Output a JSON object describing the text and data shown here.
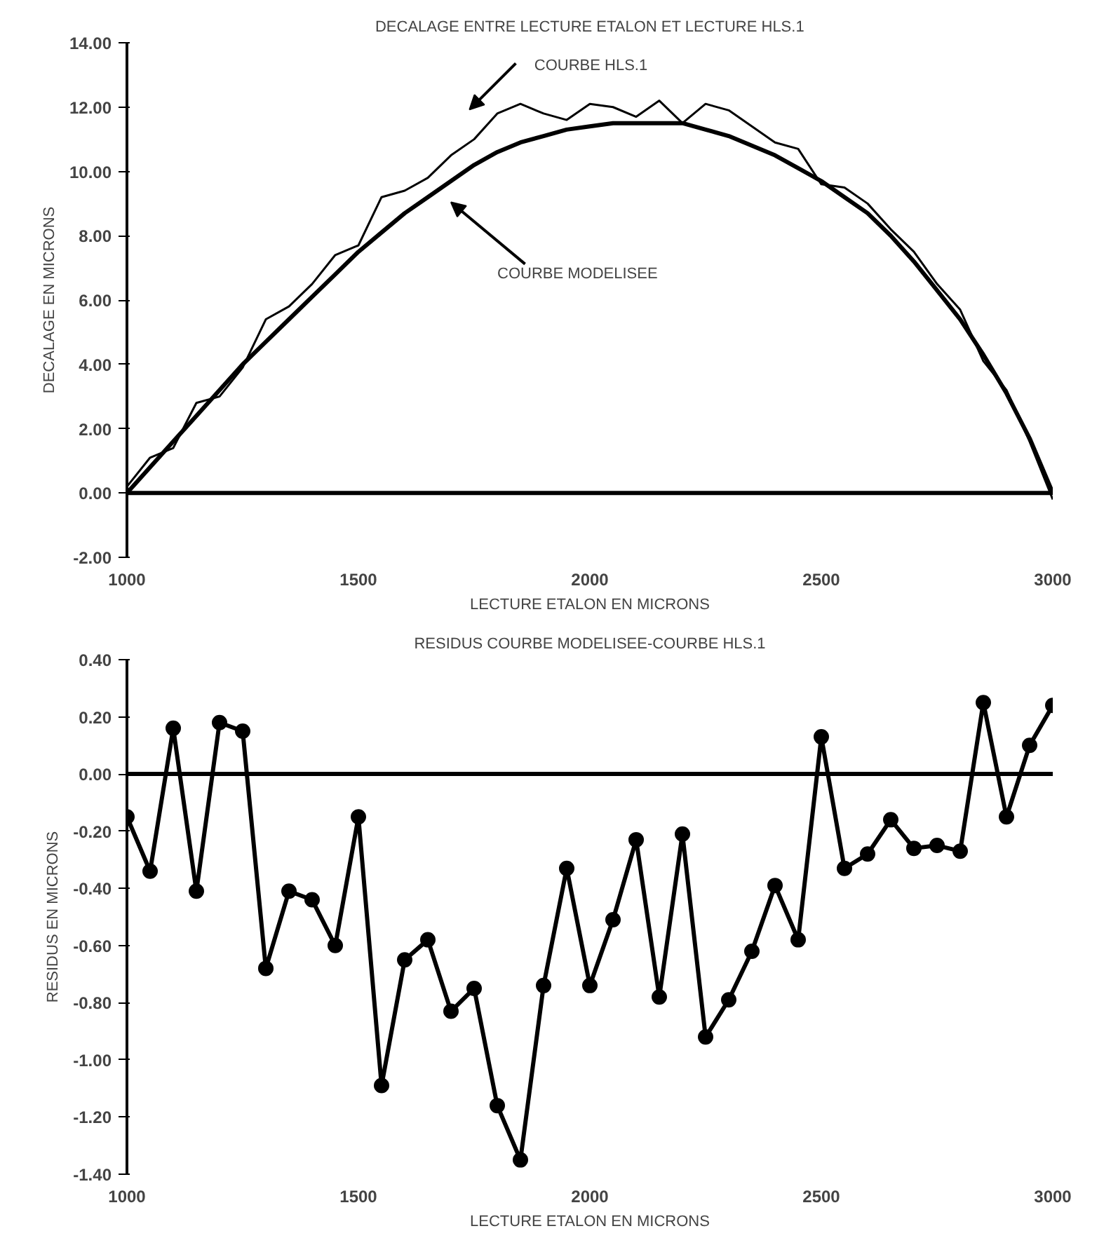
{
  "chart_data": [
    {
      "type": "line",
      "title": "DECALAGE ENTRE LECTURE ETALON ET LECTURE HLS.1",
      "xlabel": "LECTURE ETALON EN MICRONS",
      "ylabel": "DECALAGE EN MICRONS",
      "x": [
        1000,
        1050,
        1100,
        1150,
        1200,
        1250,
        1300,
        1350,
        1400,
        1450,
        1500,
        1550,
        1600,
        1650,
        1700,
        1750,
        1800,
        1850,
        1900,
        1950,
        2000,
        2050,
        2100,
        2150,
        2200,
        2250,
        2300,
        2350,
        2400,
        2450,
        2500,
        2550,
        2600,
        2650,
        2700,
        2750,
        2800,
        2850,
        2900,
        2950,
        3000
      ],
      "series": [
        {
          "color": "#000000",
          "values": [
            0.2,
            1.1,
            1.4,
            2.8,
            3.0,
            3.9,
            5.4,
            5.8,
            6.5,
            7.4,
            7.7,
            9.2,
            9.4,
            9.8,
            10.5,
            11.0,
            11.8,
            12.1,
            11.8,
            11.6,
            12.1,
            12.0,
            11.7,
            12.2,
            11.5,
            12.1,
            11.9,
            11.4,
            10.9,
            10.7,
            9.6,
            9.5,
            9.0,
            8.2,
            7.5,
            6.5,
            5.7,
            4.1,
            3.2,
            1.6,
            -0.2
          ]
        },
        {
          "color": "#000000",
          "values": [
            0,
            0.8,
            1.6,
            2.4,
            3.2,
            4.0,
            4.7,
            5.4,
            6.1,
            6.8,
            7.5,
            8.1,
            8.7,
            9.2,
            9.7,
            10.2,
            10.6,
            10.9,
            11.1,
            11.3,
            11.4,
            11.5,
            11.5,
            11.5,
            11.5,
            11.3,
            11.1,
            10.8,
            10.5,
            10.1,
            9.7,
            9.2,
            8.7,
            8.0,
            7.2,
            6.3,
            5.4,
            4.3,
            3.1,
            1.7,
            0
          ]
        }
      ],
      "annotations": [
        "COURBE HLS.1",
        "COURBE MODELISEE"
      ],
      "xlim": [
        1000,
        3000
      ],
      "xticks": [
        1000,
        1500,
        2000,
        2500,
        3000
      ],
      "ylim": [
        -2,
        14
      ],
      "yticks": [
        {
          "value": -2,
          "label": "-2.00"
        },
        {
          "value": 0,
          "label": "0.00"
        },
        {
          "value": 2,
          "label": "2.00"
        },
        {
          "value": 4,
          "label": "4.00"
        },
        {
          "value": 6,
          "label": "6.00"
        },
        {
          "value": 8,
          "label": "8.00"
        },
        {
          "value": 10,
          "label": "10.00"
        },
        {
          "value": 12,
          "label": "12.00"
        },
        {
          "value": 14,
          "label": "14.00"
        }
      ],
      "ref_lines": [
        {
          "axis": "y",
          "value": 0,
          "color": "#000000"
        }
      ],
      "grid": false,
      "line_style": "solid"
    },
    {
      "type": "line",
      "title": "RESIDUS COURBE MODELISEE-COURBE HLS.1",
      "xlabel": "LECTURE ETALON EN MICRONS",
      "ylabel": "RESIDUS EN MICRONS",
      "x": [
        1000,
        1050,
        1100,
        1150,
        1200,
        1250,
        1300,
        1350,
        1400,
        1450,
        1500,
        1550,
        1600,
        1650,
        1700,
        1750,
        1800,
        1850,
        1900,
        1950,
        2000,
        2050,
        2100,
        2150,
        2200,
        2250,
        2300,
        2350,
        2400,
        2450,
        2500,
        2550,
        2600,
        2650,
        2700,
        2750,
        2800,
        2850,
        2900,
        2950,
        3000
      ],
      "series": [
        {
          "color": "#000000",
          "values": [
            -0.15,
            -0.34,
            0.16,
            -0.41,
            0.18,
            0.15,
            -0.68,
            -0.41,
            -0.44,
            -0.6,
            -0.15,
            -1.09,
            -0.65,
            -0.58,
            -0.83,
            -0.75,
            -1.16,
            -1.35,
            -0.74,
            -0.33,
            -0.74,
            -0.51,
            -0.23,
            -0.78,
            -0.21,
            -0.92,
            -0.79,
            -0.62,
            -0.39,
            -0.58,
            0.13,
            -0.33,
            -0.28,
            -0.16,
            -0.26,
            -0.25,
            -0.27,
            0.25,
            -0.15,
            0.1,
            0.24
          ]
        }
      ],
      "xlim": [
        1000,
        3000
      ],
      "xticks": [
        1000,
        1500,
        2000,
        2500,
        3000
      ],
      "ylim": [
        -1.4,
        0.4
      ],
      "yticks": [
        {
          "value": -1.4,
          "label": "-1.40"
        },
        {
          "value": -1.2,
          "label": "-1.20"
        },
        {
          "value": -1,
          "label": "-1.00"
        },
        {
          "value": -0.8,
          "label": "-0.80"
        },
        {
          "value": -0.6,
          "label": "-0.60"
        },
        {
          "value": -0.4,
          "label": "-0.40"
        },
        {
          "value": -0.2,
          "label": "-0.20"
        },
        {
          "value": 0,
          "label": "0.00"
        },
        {
          "value": 0.2,
          "label": "0.20"
        },
        {
          "value": 0.4,
          "label": "0.40"
        }
      ],
      "ref_lines": [
        {
          "axis": "y",
          "value": 0,
          "color": "#000000"
        }
      ],
      "grid": false,
      "marker": "circle",
      "line_style": "solid"
    }
  ]
}
